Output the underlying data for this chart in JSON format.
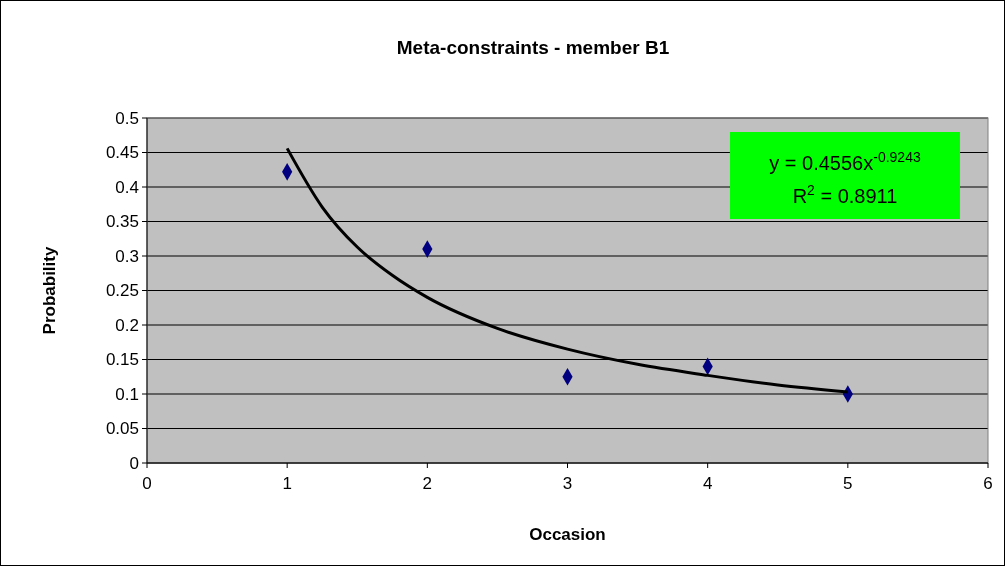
{
  "chart_data": {
    "type": "scatter",
    "title": "Meta-constraints - member B1",
    "xlabel": "Occasion",
    "ylabel": "Probability",
    "xlim": [
      0,
      6
    ],
    "xticks": [
      0,
      1,
      2,
      3,
      4,
      5,
      6
    ],
    "ylim": [
      0,
      0.5
    ],
    "yticks": [
      0,
      0.05,
      0.1,
      0.15,
      0.2,
      0.25,
      0.3,
      0.35,
      0.4,
      0.45,
      0.5
    ],
    "grid": "y",
    "marker": "diamond",
    "series": [
      {
        "type": "scatter",
        "color": "#000080",
        "x": [
          1,
          2,
          3,
          4,
          5
        ],
        "values": [
          0.422,
          0.31,
          0.125,
          0.14,
          0.1
        ]
      },
      {
        "type": "line",
        "color": "#000000",
        "marker": "none",
        "x": [
          1,
          1.25,
          1.5,
          1.75,
          2,
          2.5,
          3,
          3.5,
          4,
          4.5,
          5
        ],
        "values": [
          0.456,
          0.371,
          0.313,
          0.272,
          0.24,
          0.195,
          0.165,
          0.143,
          0.127,
          0.113,
          0.103
        ]
      }
    ],
    "annotations": [
      "y = 0.4556x$^{-0.9243}$",
      "R$^{2}$ = 0.8911"
    ]
  }
}
